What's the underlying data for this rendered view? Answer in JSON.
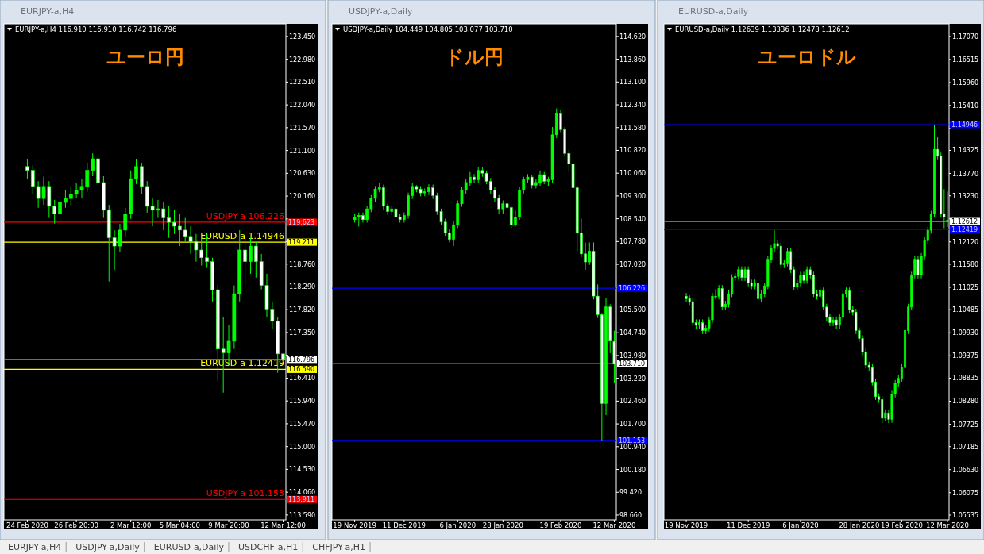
{
  "chart_data": [
    {
      "type": "candlestick",
      "title": "ユーロ円",
      "subtitle": "EURJPY-a,H4",
      "color": "#00ff00",
      "categories": [
        "24 Feb 2020",
        null,
        null,
        null,
        null,
        null,
        null,
        null,
        null,
        "26 Feb 20:00",
        null,
        null,
        null,
        null,
        null,
        null,
        null,
        null,
        null,
        "2 Mar 12:00",
        null,
        null,
        null,
        null,
        null,
        null,
        null,
        null,
        "5 Mar 04:00",
        null,
        null,
        null,
        null,
        null,
        null,
        null,
        null,
        "9 Mar 20:00",
        null,
        null,
        null,
        null,
        null,
        null,
        null,
        null,
        null,
        "12 Mar 12:00"
      ],
      "ohlc": [
        [
          120.77,
          120.93,
          120.52,
          120.69
        ],
        [
          120.69,
          120.8,
          120.2,
          120.36
        ],
        [
          120.36,
          120.47,
          119.92,
          120.11
        ],
        [
          120.11,
          120.56,
          119.98,
          120.36
        ],
        [
          120.36,
          120.47,
          119.71,
          119.95
        ],
        [
          119.95,
          120.08,
          119.59,
          119.79
        ],
        [
          119.79,
          120.15,
          119.69,
          120.03
        ],
        [
          120.03,
          120.28,
          119.92,
          120.11
        ],
        [
          120.11,
          120.36,
          119.98,
          120.2
        ],
        [
          120.2,
          120.44,
          120.11,
          120.28
        ],
        [
          120.28,
          120.52,
          120.11,
          120.36
        ],
        [
          120.36,
          120.85,
          120.25,
          120.69
        ],
        [
          120.69,
          121.04,
          120.57,
          120.93
        ],
        [
          120.93,
          121.01,
          120.28,
          120.44
        ],
        [
          120.44,
          120.57,
          119.71,
          119.87
        ],
        [
          119.87,
          119.98,
          118.4,
          119.3
        ],
        [
          119.3,
          119.46,
          118.64,
          119.13
        ],
        [
          119.13,
          119.59,
          119.0,
          119.46
        ],
        [
          119.46,
          119.92,
          119.33,
          119.79
        ],
        [
          119.79,
          120.69,
          119.69,
          120.52
        ],
        [
          120.52,
          120.93,
          120.41,
          120.77
        ],
        [
          120.77,
          120.85,
          120.2,
          120.36
        ],
        [
          120.36,
          120.47,
          119.82,
          119.95
        ],
        [
          119.95,
          120.11,
          119.54,
          119.87
        ],
        [
          119.87,
          120.08,
          119.71,
          119.9
        ],
        [
          119.9,
          120.03,
          119.46,
          119.71
        ],
        [
          119.71,
          119.95,
          119.3,
          119.62
        ],
        [
          119.62,
          119.87,
          119.38,
          119.54
        ],
        [
          119.54,
          119.79,
          119.13,
          119.46
        ],
        [
          119.46,
          119.71,
          119.22,
          119.33
        ],
        [
          119.33,
          119.54,
          118.97,
          119.22
        ],
        [
          119.22,
          119.38,
          118.81,
          119.05
        ],
        [
          119.05,
          119.3,
          118.73,
          118.89
        ],
        [
          118.89,
          119.38,
          118.68,
          118.81
        ],
        [
          118.81,
          118.89,
          117.99,
          118.23
        ],
        [
          118.23,
          118.32,
          116.35,
          117.01
        ],
        [
          117.01,
          117.66,
          116.11,
          116.93
        ],
        [
          116.93,
          117.5,
          116.68,
          117.17
        ],
        [
          117.17,
          118.32,
          117.01,
          118.15
        ],
        [
          118.15,
          119.46,
          117.99,
          119.05
        ],
        [
          119.05,
          119.3,
          118.32,
          118.81
        ],
        [
          118.81,
          119.3,
          118.56,
          119.13
        ],
        [
          119.13,
          119.22,
          118.48,
          118.81
        ],
        [
          118.81,
          118.97,
          118.24,
          118.32
        ],
        [
          118.32,
          118.56,
          117.66,
          117.83
        ],
        [
          117.83,
          117.99,
          117.42,
          117.58
        ],
        [
          117.58,
          117.66,
          116.52,
          116.91
        ],
        [
          116.91,
          116.91,
          116.742,
          116.796
        ]
      ],
      "ylim": [
        113.49,
        123.71
      ],
      "yticks": [
        {
          "value": 123.45,
          "label": "123.450"
        },
        {
          "value": 122.98,
          "label": "122.980"
        },
        {
          "value": 122.51,
          "label": "122.510"
        },
        {
          "value": 122.04,
          "label": "122.040"
        },
        {
          "value": 121.57,
          "label": "121.570"
        },
        {
          "value": 121.1,
          "label": "121.100"
        },
        {
          "value": 120.63,
          "label": "120.630"
        },
        {
          "value": 120.16,
          "label": "120.160"
        },
        {
          "value": 119.69,
          "label": null
        },
        {
          "value": 119.22,
          "label": null
        },
        {
          "value": 118.76,
          "label": "118.760"
        },
        {
          "value": 118.29,
          "label": "118.290"
        },
        {
          "value": 117.82,
          "label": "117.820"
        },
        {
          "value": 117.35,
          "label": "117.350"
        },
        {
          "value": 116.88,
          "label": null
        },
        {
          "value": 116.41,
          "label": "116.410"
        },
        {
          "value": 115.94,
          "label": "115.940"
        },
        {
          "value": 115.47,
          "label": "115.470"
        },
        {
          "value": 115.0,
          "label": "115.000"
        },
        {
          "value": 114.53,
          "label": "114.530"
        },
        {
          "value": 114.06,
          "label": "114.060"
        },
        {
          "value": 113.59,
          "label": "113.590"
        }
      ],
      "ref_lines": [
        {
          "axis": "y",
          "value": 119.623,
          "label": "119.623",
          "color": "#ff0000"
        },
        {
          "axis": "y",
          "value": 119.211,
          "label": "119.211",
          "color": "#ffff00"
        },
        {
          "axis": "y",
          "value": 116.796,
          "label": "116.796",
          "color": "#8a939e"
        },
        {
          "axis": "y",
          "value": 116.59,
          "label": "116.590",
          "color": "#ffff00"
        },
        {
          "axis": "y",
          "value": 113.911,
          "label": "113.911",
          "color": "#ff0000"
        }
      ],
      "annotations": [
        "EURJPY-a,H4  116.910 116.910 116.742 116.796",
        {
          "text": "USDJPY-a 106.226",
          "y": 119.623
        },
        {
          "text": "EURUSD-a 1.14946",
          "y": 119.211
        },
        {
          "text": "EURUSD-a 1.12419",
          "y": 116.59
        },
        {
          "text": "USDJPY-a 101.153",
          "y": 113.911
        }
      ]
    },
    {
      "type": "candlestick",
      "title": "ドル円",
      "subtitle": "USDJPY-a,Daily",
      "color": "#00ff00",
      "categories": [
        "19 Nov 2019",
        null,
        null,
        null,
        null,
        null,
        null,
        null,
        null,
        null,
        null,
        null,
        "11 Dec 2019",
        null,
        null,
        null,
        null,
        null,
        null,
        null,
        null,
        null,
        null,
        null,
        null,
        "6 Jan 2020",
        null,
        null,
        null,
        null,
        null,
        null,
        null,
        null,
        null,
        null,
        "28 Jan 2020",
        null,
        null,
        null,
        null,
        null,
        null,
        null,
        null,
        null,
        null,
        null,
        null,
        null,
        "19 Feb 2020",
        null,
        null,
        null,
        null,
        null,
        null,
        null,
        null,
        null,
        null,
        null,
        null,
        "12 Mar 2020"
      ],
      "ohlc": [
        [
          108.51,
          108.71,
          108.41,
          108.6
        ],
        [
          108.6,
          108.75,
          108.28,
          108.65
        ],
        [
          108.65,
          108.75,
          108.41,
          108.51
        ],
        [
          108.51,
          108.97,
          108.41,
          108.87
        ],
        [
          108.87,
          109.33,
          108.76,
          109.22
        ],
        [
          109.22,
          109.63,
          109.11,
          109.53
        ],
        [
          109.53,
          109.75,
          109.42,
          109.57
        ],
        [
          109.57,
          109.68,
          108.85,
          108.96
        ],
        [
          108.96,
          109.04,
          108.67,
          108.78
        ],
        [
          108.78,
          108.97,
          108.67,
          108.87
        ],
        [
          108.87,
          108.97,
          108.5,
          108.6
        ],
        [
          108.6,
          108.71,
          108.41,
          108.51
        ],
        [
          108.51,
          108.75,
          108.41,
          108.65
        ],
        [
          108.65,
          109.41,
          108.54,
          109.31
        ],
        [
          109.31,
          109.72,
          109.2,
          109.62
        ],
        [
          109.62,
          109.66,
          109.42,
          109.53
        ],
        [
          109.53,
          109.63,
          109.29,
          109.4
        ],
        [
          109.4,
          109.55,
          109.29,
          109.44
        ],
        [
          109.44,
          109.69,
          109.33,
          109.57
        ],
        [
          109.57,
          109.68,
          109.2,
          109.31
        ],
        [
          109.31,
          109.41,
          108.67,
          108.78
        ],
        [
          108.78,
          108.88,
          108.32,
          108.43
        ],
        [
          108.43,
          108.54,
          107.97,
          108.07
        ],
        [
          108.07,
          108.2,
          107.75,
          107.85
        ],
        [
          107.85,
          108.47,
          107.63,
          108.34
        ],
        [
          108.34,
          109.15,
          108.23,
          109.04
        ],
        [
          109.04,
          109.59,
          108.94,
          109.49
        ],
        [
          109.49,
          109.85,
          109.38,
          109.75
        ],
        [
          109.75,
          110.1,
          109.64,
          109.93
        ],
        [
          109.93,
          110.03,
          109.73,
          109.84
        ],
        [
          109.84,
          110.25,
          109.73,
          110.15
        ],
        [
          110.15,
          110.25,
          109.94,
          110.06
        ],
        [
          110.06,
          110.15,
          109.69,
          109.79
        ],
        [
          109.79,
          109.9,
          109.38,
          109.49
        ],
        [
          109.49,
          109.59,
          109.11,
          109.22
        ],
        [
          109.22,
          109.33,
          108.69,
          108.87
        ],
        [
          108.87,
          109.15,
          108.69,
          109.04
        ],
        [
          109.04,
          109.15,
          108.81,
          108.91
        ],
        [
          108.91,
          108.97,
          108.23,
          108.34
        ],
        [
          108.34,
          108.81,
          108.28,
          108.6
        ],
        [
          108.6,
          109.59,
          108.5,
          109.49
        ],
        [
          109.49,
          109.94,
          109.38,
          109.84
        ],
        [
          109.84,
          110.03,
          109.73,
          109.93
        ],
        [
          109.93,
          110.01,
          109.55,
          109.66
        ],
        [
          109.66,
          109.85,
          109.55,
          109.75
        ],
        [
          109.75,
          110.15,
          109.64,
          110.01
        ],
        [
          110.01,
          110.1,
          109.69,
          109.79
        ],
        [
          109.79,
          109.94,
          109.64,
          109.84
        ],
        [
          109.84,
          111.6,
          109.73,
          111.34
        ],
        [
          111.34,
          112.22,
          111.23,
          112.04
        ],
        [
          112.04,
          112.18,
          111.43,
          111.51
        ],
        [
          111.51,
          111.6,
          110.61,
          110.72
        ],
        [
          110.72,
          110.83,
          110.1,
          110.37
        ],
        [
          110.37,
          110.47,
          109.47,
          109.57
        ],
        [
          109.57,
          109.66,
          107.46,
          108.07
        ],
        [
          108.07,
          108.54,
          107.26,
          107.37
        ],
        [
          107.37,
          107.75,
          106.84,
          107.1
        ],
        [
          107.1,
          107.75,
          107.0,
          107.46
        ],
        [
          107.46,
          107.75,
          105.85,
          105.96
        ],
        [
          105.96,
          106.35,
          105.23,
          105.34
        ],
        [
          105.34,
          105.4,
          101.15,
          102.38
        ],
        [
          102.38,
          105.91,
          101.99,
          105.6
        ],
        [
          105.6,
          105.69,
          104.06,
          104.46
        ],
        [
          104.449,
          104.805,
          103.077,
          103.71
        ]
      ],
      "ylim": [
        98.5,
        115.04
      ],
      "yticks": [
        {
          "value": 114.62,
          "label": "114.620"
        },
        {
          "value": 113.86,
          "label": "113.860"
        },
        {
          "value": 113.1,
          "label": "113.100"
        },
        {
          "value": 112.34,
          "label": "112.340"
        },
        {
          "value": 111.58,
          "label": "111.580"
        },
        {
          "value": 110.82,
          "label": "110.820"
        },
        {
          "value": 110.06,
          "label": "110.060"
        },
        {
          "value": 109.3,
          "label": "109.300"
        },
        {
          "value": 108.54,
          "label": "108.540"
        },
        {
          "value": 107.78,
          "label": "107.780"
        },
        {
          "value": 107.02,
          "label": "107.020"
        },
        {
          "value": 106.26,
          "label": null
        },
        {
          "value": 105.5,
          "label": "105.500"
        },
        {
          "value": 104.74,
          "label": "104.740"
        },
        {
          "value": 103.98,
          "label": "103.980"
        },
        {
          "value": 103.22,
          "label": "103.220"
        },
        {
          "value": 102.46,
          "label": "102.460"
        },
        {
          "value": 101.7,
          "label": "101.700"
        },
        {
          "value": 100.94,
          "label": "100.940"
        },
        {
          "value": 100.18,
          "label": "100.180"
        },
        {
          "value": 99.42,
          "label": "99.420"
        },
        {
          "value": 98.66,
          "label": "98.660"
        }
      ],
      "ref_lines": [
        {
          "axis": "y",
          "value": 106.226,
          "label": "106.226",
          "color": "#0000ff"
        },
        {
          "axis": "y",
          "value": 103.71,
          "label": "103.710",
          "color": "#8a939e"
        },
        {
          "axis": "y",
          "value": 101.153,
          "label": "101.153",
          "color": "#0000ff"
        }
      ],
      "annotations": [
        "USDJPY-a,Daily  104.449 104.805 103.077 103.710"
      ]
    },
    {
      "type": "candlestick",
      "title": "ユーロドル",
      "subtitle": "EURUSD-a,Daily",
      "color": "#00ff00",
      "categories": [
        "19 Nov 2019",
        null,
        null,
        null,
        null,
        null,
        null,
        null,
        null,
        null,
        null,
        null,
        null,
        null,
        null,
        null,
        null,
        null,
        null,
        "11 Dec 2019",
        null,
        null,
        null,
        null,
        null,
        null,
        null,
        null,
        null,
        null,
        null,
        null,
        null,
        null,
        null,
        "6 Jan 2020",
        null,
        null,
        null,
        null,
        null,
        null,
        null,
        null,
        null,
        null,
        null,
        null,
        null,
        null,
        null,
        null,
        null,
        "28 Jan 2020",
        null,
        null,
        null,
        null,
        null,
        null,
        null,
        null,
        null,
        null,
        null,
        null,
        "19 Feb 2020",
        null,
        null,
        null,
        null,
        null,
        null,
        null,
        null,
        null,
        null,
        null,
        null,
        null,
        "12 Mar 2020"
      ],
      "ohlc": [
        [
          1.1081,
          1.1089,
          1.1067,
          1.1075
        ],
        [
          1.1075,
          1.1083,
          1.106,
          1.1068
        ],
        [
          1.1068,
          1.1076,
          1.1009,
          1.1017
        ],
        [
          1.1017,
          1.1025,
          1.1003,
          1.1011
        ],
        [
          1.1011,
          1.1025,
          1.1003,
          1.1017
        ],
        [
          1.1017,
          1.1025,
          1.099,
          1.0998
        ],
        [
          1.0998,
          1.1012,
          1.099,
          1.1004
        ],
        [
          1.1004,
          1.1032,
          1.0996,
          1.1024
        ],
        [
          1.1024,
          1.1089,
          1.1016,
          1.1081
        ],
        [
          1.1081,
          1.1098,
          1.1073,
          1.1081
        ],
        [
          1.1081,
          1.1108,
          1.1073,
          1.11
        ],
        [
          1.11,
          1.1108,
          1.1047,
          1.1055
        ],
        [
          1.1055,
          1.107,
          1.1047,
          1.1062
        ],
        [
          1.1062,
          1.1095,
          1.1054,
          1.1087
        ],
        [
          1.1087,
          1.1134,
          1.1079,
          1.1126
        ],
        [
          1.1126,
          1.1137,
          1.1118,
          1.1129
        ],
        [
          1.1129,
          1.1153,
          1.1121,
          1.1145
        ],
        [
          1.1145,
          1.1153,
          1.1118,
          1.1126
        ],
        [
          1.1126,
          1.1153,
          1.1118,
          1.1145
        ],
        [
          1.1145,
          1.1153,
          1.1105,
          1.1113
        ],
        [
          1.1113,
          1.1121,
          1.1098,
          1.1106
        ],
        [
          1.1106,
          1.1121,
          1.1098,
          1.1113
        ],
        [
          1.1113,
          1.1121,
          1.1067,
          1.1075
        ],
        [
          1.1075,
          1.1095,
          1.1067,
          1.1087
        ],
        [
          1.1087,
          1.1114,
          1.1079,
          1.1106
        ],
        [
          1.1106,
          1.1178,
          1.1098,
          1.117
        ],
        [
          1.117,
          1.1204,
          1.1162,
          1.1196
        ],
        [
          1.1196,
          1.124,
          1.1188,
          1.1208
        ],
        [
          1.1208,
          1.1216,
          1.1194,
          1.1202
        ],
        [
          1.1202,
          1.121,
          1.1149,
          1.1157
        ],
        [
          1.1157,
          1.1169,
          1.1149,
          1.1161
        ],
        [
          1.1161,
          1.1197,
          1.1153,
          1.1189
        ],
        [
          1.1189,
          1.1197,
          1.1137,
          1.1145
        ],
        [
          1.1145,
          1.1153,
          1.1095,
          1.1103
        ],
        [
          1.1103,
          1.1121,
          1.1095,
          1.1113
        ],
        [
          1.1113,
          1.114,
          1.1105,
          1.1132
        ],
        [
          1.1132,
          1.114,
          1.1111,
          1.1119
        ],
        [
          1.1119,
          1.1153,
          1.1111,
          1.1145
        ],
        [
          1.1145,
          1.1153,
          1.1124,
          1.1132
        ],
        [
          1.1132,
          1.114,
          1.1079,
          1.1087
        ],
        [
          1.1087,
          1.1095,
          1.1073,
          1.1081
        ],
        [
          1.1081,
          1.1102,
          1.1073,
          1.1094
        ],
        [
          1.1094,
          1.1102,
          1.1047,
          1.1055
        ],
        [
          1.1055,
          1.1063,
          1.1022,
          1.103
        ],
        [
          1.103,
          1.1038,
          1.1009,
          1.1017
        ],
        [
          1.1017,
          1.1032,
          1.1009,
          1.1024
        ],
        [
          1.1024,
          1.1032,
          1.1003,
          1.1011
        ],
        [
          1.1011,
          1.1038,
          1.1003,
          1.103
        ],
        [
          1.103,
          1.1095,
          1.1022,
          1.1087
        ],
        [
          1.1087,
          1.1102,
          1.1079,
          1.1094
        ],
        [
          1.1094,
          1.1102,
          1.1041,
          1.1049
        ],
        [
          1.1049,
          1.1057,
          1.1035,
          1.1043
        ],
        [
          1.1043,
          1.1051,
          1.099,
          1.0998
        ],
        [
          1.0998,
          1.1006,
          1.0971,
          1.0979
        ],
        [
          1.0979,
          1.0987,
          1.0939,
          1.0947
        ],
        [
          1.0947,
          1.0955,
          1.0907,
          1.0915
        ],
        [
          1.0915,
          1.0923,
          1.0901,
          1.0909
        ],
        [
          1.0909,
          1.0917,
          1.0866,
          1.0874
        ],
        [
          1.0874,
          1.0882,
          1.0831,
          1.0839
        ],
        [
          1.0839,
          1.0847,
          1.0824,
          1.0832
        ],
        [
          1.0832,
          1.084,
          1.0775,
          1.0787
        ],
        [
          1.0787,
          1.0808,
          1.0779,
          1.08
        ],
        [
          1.08,
          1.0808,
          1.0775,
          1.0784
        ],
        [
          1.0784,
          1.0853,
          1.0776,
          1.0845
        ],
        [
          1.0845,
          1.0879,
          1.0837,
          1.0871
        ],
        [
          1.0871,
          1.0891,
          1.0863,
          1.0883
        ],
        [
          1.0883,
          1.0917,
          1.0875,
          1.0909
        ],
        [
          1.0909,
          1.1006,
          1.0901,
          1.0998
        ],
        [
          1.0998,
          1.1063,
          1.099,
          1.1055
        ],
        [
          1.1055,
          1.114,
          1.1047,
          1.1132
        ],
        [
          1.1132,
          1.1178,
          1.1124,
          1.117
        ],
        [
          1.117,
          1.1178,
          1.1124,
          1.1132
        ],
        [
          1.1132,
          1.1185,
          1.1124,
          1.1177
        ],
        [
          1.1177,
          1.1223,
          1.1169,
          1.1215
        ],
        [
          1.1215,
          1.1248,
          1.1207,
          1.124
        ],
        [
          1.124,
          1.1287,
          1.1232,
          1.1279
        ],
        [
          1.1279,
          1.14946,
          1.1271,
          1.1435
        ],
        [
          1.1435,
          1.1465,
          1.1411,
          1.1419
        ],
        [
          1.1419,
          1.1427,
          1.1271,
          1.1279
        ],
        [
          1.1279,
          1.1339,
          1.1245,
          1.1272
        ],
        [
          1.12639,
          1.13336,
          1.12478,
          1.12612
        ]
      ],
      "ylim": [
        1.0542,
        1.17376
      ],
      "yticks": [
        {
          "value": 1.1707,
          "label": "1.17070"
        },
        {
          "value": 1.16515,
          "label": "1.16515"
        },
        {
          "value": 1.1596,
          "label": "1.15960"
        },
        {
          "value": 1.1541,
          "label": "1.15410"
        },
        {
          "value": 1.14855,
          "label": null
        },
        {
          "value": 1.14325,
          "label": "1.14325"
        },
        {
          "value": 1.1377,
          "label": "1.13770"
        },
        {
          "value": 1.1323,
          "label": "1.13230"
        },
        {
          "value": 1.12675,
          "label": null
        },
        {
          "value": 1.1212,
          "label": "1.12120"
        },
        {
          "value": 1.1158,
          "label": "1.11580"
        },
        {
          "value": 1.11025,
          "label": "1.11025"
        },
        {
          "value": 1.10485,
          "label": "1.10485"
        },
        {
          "value": 1.0993,
          "label": "1.09930"
        },
        {
          "value": 1.09375,
          "label": "1.09375"
        },
        {
          "value": 1.08835,
          "label": "1.08835"
        },
        {
          "value": 1.0828,
          "label": "1.08280"
        },
        {
          "value": 1.07725,
          "label": "1.07725"
        },
        {
          "value": 1.07185,
          "label": "1.07185"
        },
        {
          "value": 1.0663,
          "label": "1.06630"
        },
        {
          "value": 1.06075,
          "label": "1.06075"
        },
        {
          "value": 1.05535,
          "label": "1.05535"
        }
      ],
      "ref_lines": [
        {
          "axis": "y",
          "value": 1.14946,
          "label": "1.14946",
          "color": "#0000ff"
        },
        {
          "axis": "y",
          "value": 1.12612,
          "label": "1.12612",
          "color": "#8a939e"
        },
        {
          "axis": "y",
          "value": 1.12419,
          "label": "1.12419",
          "color": "#0000ff"
        }
      ],
      "annotations": [
        "EURUSD-a,Daily  1.12639 1.13336 1.12478 1.12612"
      ]
    },
    {
      "type": "other",
      "annotations": [
        "EURJPY-a,H4",
        "USDJPY-a,Daily",
        "EURUSD-a,Daily",
        "USDCHF-a,H1",
        "CHFJPY-a,H1"
      ]
    }
  ]
}
